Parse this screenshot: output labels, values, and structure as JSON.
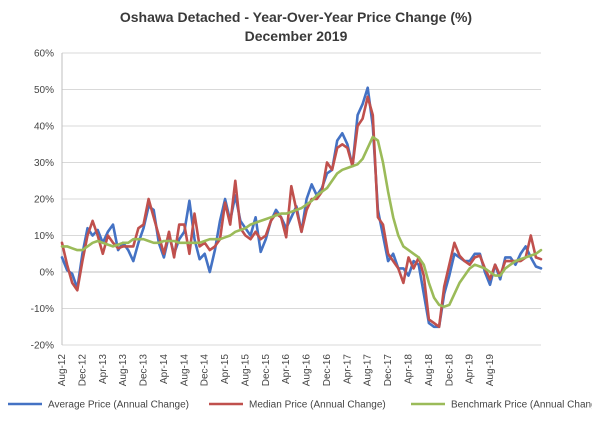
{
  "chart_data": {
    "type": "line",
    "title": "Oshawa Detached - Year-Over-Year Price Change (%)",
    "subtitle": "December 2019",
    "ylim": [
      -20,
      60
    ],
    "yticks": [
      -20,
      -10,
      0,
      10,
      20,
      30,
      40,
      50,
      60
    ],
    "ytick_labels": [
      "-20%",
      "-10%",
      "0%",
      "10%",
      "20%",
      "30%",
      "40%",
      "50%",
      "60%"
    ],
    "xtick_labels": [
      "Aug-12",
      "Dec-12",
      "Apr-13",
      "Aug-13",
      "Dec-13",
      "Apr-14",
      "Aug-14",
      "Dec-14",
      "Apr-15",
      "Aug-15",
      "Dec-15",
      "Apr-16",
      "Aug-16",
      "Dec-16",
      "Apr-17",
      "Aug-17",
      "Dec-17",
      "Apr-18",
      "Aug-18",
      "Dec-18",
      "Apr-19",
      "Aug-19"
    ],
    "grid": true,
    "legend_position": "bottom",
    "x_start": "Aug-12",
    "x_end": "Dec-19",
    "series": [
      {
        "name": "Average Price (Annual Change)",
        "color": "#4472C4",
        "values": [
          4,
          0.5,
          -0.5,
          -4.5,
          5,
          12,
          10,
          11.5,
          8,
          11,
          13,
          6,
          8,
          6,
          3,
          8,
          12,
          18,
          17,
          8,
          4,
          10,
          5,
          9,
          11,
          19.5,
          9,
          3.5,
          5,
          0,
          6,
          14,
          20,
          14,
          21,
          14,
          12,
          10,
          15,
          5.5,
          9,
          14,
          17,
          15,
          12,
          15,
          18,
          11,
          20,
          24,
          21,
          23,
          27,
          28,
          36,
          38,
          35,
          29,
          43,
          46,
          50.5,
          40,
          17,
          10,
          3,
          5,
          1,
          1,
          -1,
          3,
          2,
          -6,
          -14,
          -15,
          -15,
          -6,
          -1,
          5,
          4,
          3,
          3,
          5,
          5,
          0,
          -3.5,
          2,
          -2,
          4,
          4,
          2,
          5,
          7,
          4,
          1.5,
          1
        ],
        "gaps": []
      },
      {
        "name": "Median Price (Annual Change)",
        "color": "#C0504D",
        "values": [
          8,
          2,
          -3,
          -5,
          3,
          10,
          14,
          10,
          5,
          10,
          8,
          6.5,
          7,
          7,
          7,
          12,
          13,
          20,
          15,
          10,
          5,
          11,
          4,
          13,
          13,
          5,
          16,
          7,
          8,
          6,
          7,
          9,
          19,
          13,
          25,
          12,
          10,
          9,
          11,
          9,
          10,
          14,
          16,
          15,
          9.5,
          23.5,
          17,
          11,
          17,
          20,
          20,
          22,
          30,
          28,
          34,
          35,
          34,
          29,
          40,
          42,
          48,
          43,
          15,
          13,
          5,
          3,
          1,
          -3,
          4,
          1,
          4,
          -1,
          -13,
          -14,
          -15,
          -4,
          2,
          8,
          4.5,
          3,
          2,
          4,
          4.5,
          1,
          -2,
          2,
          -1,
          3,
          3,
          3,
          3,
          4,
          10,
          4,
          3.5
        ],
        "gaps": []
      },
      {
        "name": "Benchmark Price (Annual Change)",
        "color": "#9BBB59",
        "values": [
          7,
          7,
          6.5,
          6,
          6,
          7,
          8,
          8.5,
          8,
          7.5,
          7,
          7.5,
          8,
          8,
          9,
          9,
          9,
          8.5,
          8,
          8,
          8.5,
          8.5,
          8.5,
          8,
          8,
          8,
          8,
          8,
          8.5,
          9,
          9,
          9,
          9.5,
          10,
          11,
          11.5,
          12,
          13,
          13.5,
          14,
          14.5,
          15,
          15.5,
          16,
          16,
          16.5,
          17,
          17.5,
          18.5,
          19.5,
          21,
          22,
          23,
          25,
          27,
          28,
          28.5,
          29,
          29.5,
          31,
          34,
          37,
          36,
          30,
          22,
          15,
          10,
          7,
          6,
          5,
          4,
          2,
          -3,
          -7,
          -9,
          -9.5,
          -9,
          -6,
          -3,
          -1,
          1,
          2,
          1.5,
          1,
          0,
          -1,
          -1,
          1,
          2,
          3,
          3.5,
          4,
          4.5,
          5,
          6
        ],
        "gaps": []
      }
    ]
  }
}
